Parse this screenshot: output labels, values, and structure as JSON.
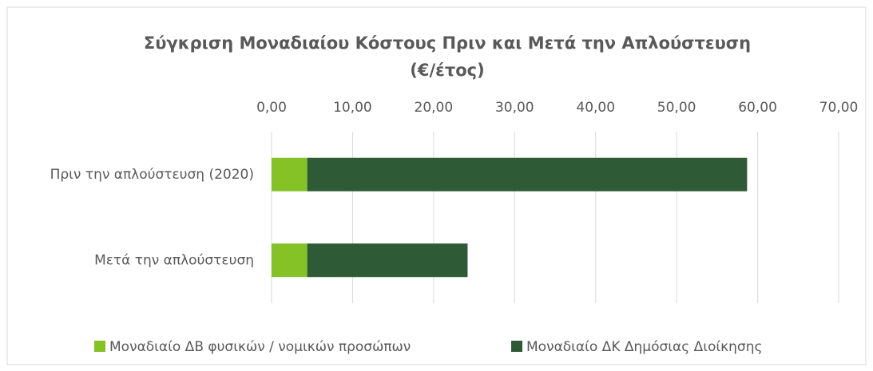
{
  "chart_data": {
    "type": "stacked-bar-horizontal",
    "title": [
      "Σύγκριση Μοναδιαίου Κόστους Πριν και Μετά την Απλούστευση",
      "(€/έτος)"
    ],
    "categories": [
      "Πριν την απλούστευση (2020)",
      "Μετά την απλούστευση"
    ],
    "series": [
      {
        "name": "Μοναδιαίο ΔΒ φυσικών / νομικών προσώπων",
        "color": "#84c225",
        "values": [
          4.4,
          4.4
        ]
      },
      {
        "name": "Μοναδιαίο ΔΚ Δημόσιας Διοίκησης",
        "color": "#2e5b35",
        "values": [
          54.3,
          19.8
        ]
      }
    ],
    "xlim": [
      0,
      70
    ],
    "xticks": [
      {
        "value": 0,
        "label": "0,00"
      },
      {
        "value": 10,
        "label": "10,00"
      },
      {
        "value": 20,
        "label": "20,00"
      },
      {
        "value": 30,
        "label": "30,00"
      },
      {
        "value": 40,
        "label": "40,00"
      },
      {
        "value": 50,
        "label": "50,00"
      },
      {
        "value": 60,
        "label": "60,00"
      },
      {
        "value": 70,
        "label": "70,00"
      }
    ],
    "grid": true,
    "legend": "bottom"
  }
}
